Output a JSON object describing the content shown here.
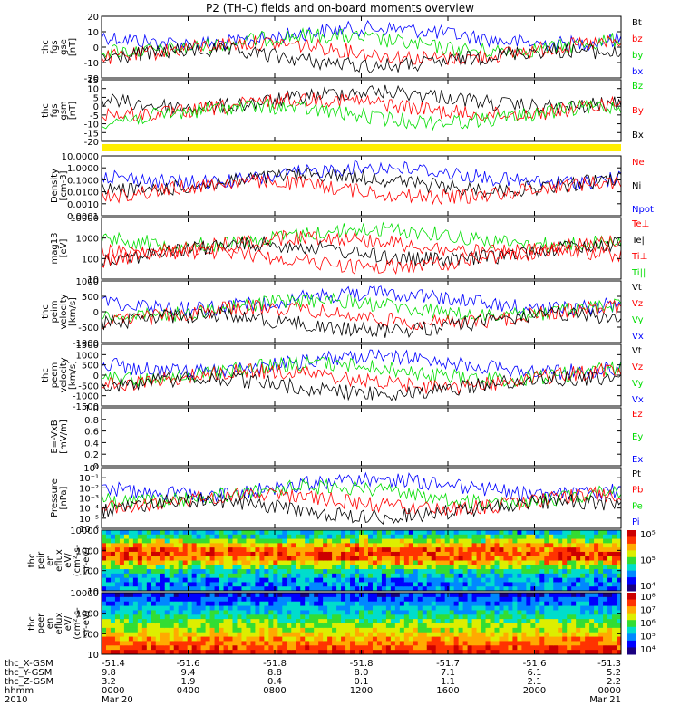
{
  "title": "P2 (TH-C) fields and on-board moments overview",
  "colors": {
    "black": "#000000",
    "red": "#ff0000",
    "green": "#00dd00",
    "blue": "#0000ff",
    "yellow": "#ffee00"
  },
  "chart_data": [
    {
      "id": "p1",
      "type": "line",
      "ylabel": [
        "thc",
        "fgs",
        "gse",
        "[nT]"
      ],
      "yticks": [
        "20",
        "10",
        "0",
        "-10",
        "-20"
      ],
      "ylim": [
        -20,
        20
      ],
      "legend": [
        {
          "name": "Bt",
          "color": "black"
        },
        {
          "name": "bz",
          "color": "red"
        },
        {
          "name": "by",
          "color": "green"
        },
        {
          "name": "bx",
          "color": "blue"
        }
      ]
    },
    {
      "id": "p2",
      "type": "line",
      "ylabel": [
        "thc",
        "fgs",
        "gsm",
        "[nT]"
      ],
      "yticks": [
        "15",
        "10",
        "5",
        "0",
        "-5",
        "-10",
        "-15",
        "-20"
      ],
      "ylim": [
        -20,
        15
      ],
      "legend": [
        {
          "name": "Bz",
          "color": "green"
        },
        {
          "name": "By",
          "color": "red"
        },
        {
          "name": "Bx",
          "color": "black"
        }
      ]
    },
    {
      "id": "p3",
      "type": "line",
      "ylabel": [
        "Density",
        "[cm-3]"
      ],
      "yticks": [
        "10.0000",
        "1.0000",
        "0.1000",
        "0.0100",
        "0.0010",
        "0.0001"
      ],
      "log": true,
      "legend": [
        {
          "name": "Ne",
          "color": "red"
        },
        {
          "name": "Ni",
          "color": "black"
        },
        {
          "name": "Npot",
          "color": "blue"
        }
      ]
    },
    {
      "id": "p4",
      "type": "line",
      "ylabel": [
        "mag13",
        "[eV]"
      ],
      "yticks": [
        "10000",
        "1000",
        "100",
        "10"
      ],
      "log": true,
      "legend": [
        {
          "name": "Te⊥",
          "color": "red"
        },
        {
          "name": "Te||",
          "color": "black"
        },
        {
          "name": "Ti⊥",
          "color": "red"
        },
        {
          "name": "Ti||",
          "color": "green"
        }
      ]
    },
    {
      "id": "p5",
      "type": "line",
      "ylabel": [
        "thc",
        "peim",
        "velocity",
        "[km/s]"
      ],
      "yticks": [
        "1000",
        "500",
        "0",
        "-500",
        "-1000"
      ],
      "ylim": [
        -1000,
        1000
      ],
      "legend": [
        {
          "name": "Vt",
          "color": "black"
        },
        {
          "name": "Vz",
          "color": "red"
        },
        {
          "name": "Vy",
          "color": "green"
        },
        {
          "name": "Vx",
          "color": "blue"
        }
      ]
    },
    {
      "id": "p6",
      "type": "line",
      "ylabel": [
        "thc",
        "peem",
        "velocity",
        "[km/s]"
      ],
      "yticks": [
        "1500",
        "1000",
        "500",
        "0",
        "-500",
        "-1000",
        "-1500"
      ],
      "ylim": [
        -1500,
        1500
      ],
      "legend": [
        {
          "name": "Vt",
          "color": "black"
        },
        {
          "name": "Vz",
          "color": "red"
        },
        {
          "name": "Vy",
          "color": "green"
        },
        {
          "name": "Vx",
          "color": "blue"
        }
      ]
    },
    {
      "id": "p7",
      "type": "line",
      "ylabel": [
        "E=-VxB",
        "[mV/m]"
      ],
      "yticks": [
        "1.0",
        "0.8",
        "0.6",
        "0.4",
        "0.2",
        "0"
      ],
      "ylim": [
        0,
        1
      ],
      "legend": [
        {
          "name": "Ez",
          "color": "red"
        },
        {
          "name": "Ey",
          "color": "green"
        },
        {
          "name": "Ex",
          "color": "blue"
        }
      ]
    },
    {
      "id": "p8",
      "type": "line",
      "ylabel": [
        "Pressure",
        "[nPa]"
      ],
      "yticks": [
        "10⁰",
        "10⁻¹",
        "10⁻²",
        "10⁻³",
        "10⁻⁴",
        "10⁻⁵",
        "10⁻⁶"
      ],
      "log": true,
      "legend": [
        {
          "name": "Pt",
          "color": "black"
        },
        {
          "name": "Pb",
          "color": "red"
        },
        {
          "name": "Pe",
          "color": "green"
        },
        {
          "name": "Pi",
          "color": "blue"
        }
      ]
    },
    {
      "id": "p9",
      "type": "heatmap",
      "ylabel": [
        "thc",
        "peir",
        "en",
        "eflux",
        "eV/",
        "(cm²-s-",
        "sr-eV)"
      ],
      "yticks": [
        "10000",
        "1000",
        "100",
        "10"
      ],
      "log": true,
      "colorbar": [
        "10⁵",
        "10⁵",
        "10⁴"
      ]
    },
    {
      "id": "p10",
      "type": "heatmap",
      "ylabel": [
        "thc",
        "peer",
        "en",
        "eflux",
        "eV/",
        "(cm²-s-",
        "sr-eV)"
      ],
      "yticks": [
        "10000",
        "1000",
        "100",
        "10"
      ],
      "log": true,
      "colorbar": [
        "10⁸",
        "10⁷",
        "10⁶",
        "10⁵",
        "10⁴"
      ]
    }
  ],
  "footer": {
    "rows": [
      {
        "label": "thc_X-GSM",
        "values": [
          "-51.4",
          "-51.6",
          "-51.8",
          "-51.8",
          "-51.7",
          "-51.6",
          "-51.3"
        ]
      },
      {
        "label": "thc_Y-GSM",
        "values": [
          "9.8",
          "9.4",
          "8.8",
          "8.0",
          "7.1",
          "6.1",
          "5.2"
        ]
      },
      {
        "label": "thc_Z-GSM",
        "values": [
          "3.2",
          "1.9",
          "0.4",
          "0.1",
          "1.1",
          "2.1",
          "2.2"
        ]
      },
      {
        "label": "hhmm",
        "values": [
          "0000",
          "0400",
          "0800",
          "1200",
          "1600",
          "2000",
          "0000"
        ]
      },
      {
        "label": "2010",
        "values": [
          "Mar 20",
          "",
          "",
          "",
          "",
          "",
          "Mar 21"
        ]
      }
    ]
  }
}
